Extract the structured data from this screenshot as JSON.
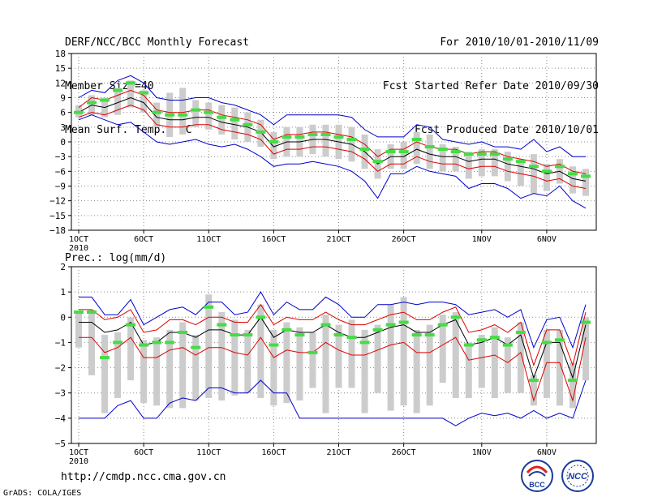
{
  "header": {
    "left": [
      "DERF/NCC/BCC Monthly Forecast",
      "Member Size=40",
      "Mean Surf. Temp.: °C"
    ],
    "right": [
      "For 2010/10/01-2010/11/09",
      "Fcst Started Refer Date 2010/09/30",
      "Fcst Produced Date 2010/10/01"
    ]
  },
  "footer": {
    "url": "http://cmdp.ncc.cma.gov.cn",
    "credit": "GrADS: COLA/IGES"
  },
  "logos": {
    "bcc": "BCC",
    "ncc": "NCC"
  },
  "colors": {
    "envelope": "#0000cc",
    "spread": "#dd0000",
    "mean": "#000000",
    "box": "#cccccc",
    "median": "#44dd44",
    "grid": "#888888"
  },
  "chart_data": [
    {
      "type": "line",
      "title": "Mean Surf. Temp.: °C",
      "x": [
        1,
        2,
        3,
        4,
        5,
        6,
        7,
        8,
        9,
        10,
        11,
        12,
        13,
        14,
        15,
        16,
        17,
        18,
        19,
        20,
        21,
        22,
        23,
        24,
        25,
        26,
        27,
        28,
        29,
        30,
        31,
        32,
        33,
        34,
        35,
        36,
        37,
        38,
        39,
        40
      ],
      "xticks": [
        1,
        6,
        11,
        16,
        21,
        26,
        32,
        37
      ],
      "xtick_labels": [
        "1OCT",
        "6OCT",
        "11OCT",
        "16OCT",
        "21OCT",
        "26OCT",
        "1NOV",
        "6NOV"
      ],
      "year_label": "2010",
      "ylim": [
        -18,
        18
      ],
      "yticks": [
        -18,
        -15,
        -12,
        -9,
        -6,
        -3,
        0,
        3,
        6,
        9,
        12,
        15,
        18
      ],
      "mean": [
        6,
        7.5,
        7,
        8,
        9,
        8,
        5,
        4.5,
        4.5,
        5,
        5,
        4,
        3.5,
        3,
        2,
        -1,
        0,
        0,
        0.5,
        0.5,
        0,
        -0.5,
        -2,
        -4.5,
        -3,
        -3,
        -1.5,
        -2.5,
        -3,
        -3,
        -4,
        -3.5,
        -3.5,
        -4.5,
        -5,
        -5.5,
        -6.5,
        -6,
        -7.5,
        -8
      ],
      "upper_spread": [
        7,
        9,
        8.5,
        9.5,
        10.5,
        9.5,
        6.5,
        6,
        6,
        6.5,
        6.5,
        5.5,
        5,
        4.5,
        3.5,
        0.5,
        1.5,
        1.5,
        2,
        2,
        1.5,
        1,
        -0.5,
        -3,
        -1.5,
        -1.5,
        0,
        -1,
        -1.5,
        -1.5,
        -2.5,
        -2,
        -2,
        -3,
        -3.5,
        -4,
        -5,
        -4.5,
        -6,
        -6.5
      ],
      "lower_spread": [
        5,
        6,
        5.5,
        6.5,
        7.5,
        6.5,
        3.5,
        3,
        3,
        3.5,
        3.5,
        2.5,
        2,
        1.5,
        0.5,
        -2.5,
        -1.5,
        -1.5,
        -1,
        -1,
        -1.5,
        -2,
        -3.5,
        -6,
        -4.5,
        -4.5,
        -3,
        -4,
        -4.5,
        -4.5,
        -5.5,
        -5,
        -5,
        -6,
        -6.5,
        -7,
        -8,
        -7.5,
        -9,
        -9.5
      ],
      "max": [
        9,
        10.5,
        10,
        12.5,
        13.5,
        12,
        9,
        8.5,
        8.5,
        9,
        9,
        8,
        7.5,
        6.5,
        5.5,
        3.5,
        5.5,
        5.5,
        5.5,
        5.5,
        5.5,
        5,
        2.5,
        1,
        1,
        1,
        3.5,
        3,
        0.5,
        0,
        -0.5,
        0,
        -1,
        -1,
        -1.5,
        0.5,
        -2,
        -1,
        -3,
        -3
      ],
      "min": [
        4.5,
        5.5,
        4.5,
        3.5,
        4,
        2,
        0,
        -0.5,
        0,
        0.5,
        -0.5,
        -1,
        -0.5,
        -1.5,
        -3,
        -5,
        -4.5,
        -4.5,
        -4,
        -4.5,
        -5,
        -6,
        -8,
        -11.5,
        -6.5,
        -6.5,
        -5,
        -6,
        -6.5,
        -7,
        -9.5,
        -8.5,
        -8.5,
        -9.5,
        -11.5,
        -10.5,
        -11,
        -9,
        -12,
        -13.5
      ],
      "box_hi": [
        7.5,
        9.5,
        9,
        11,
        12.5,
        10.5,
        8,
        10,
        11,
        8.5,
        8,
        7.5,
        7,
        6,
        4.5,
        2,
        3,
        3,
        3.5,
        3.5,
        3.5,
        3,
        1.5,
        -1.5,
        -0.5,
        0,
        2,
        1.5,
        -0.5,
        -1,
        -2,
        -1.5,
        -1.5,
        -2,
        -3.5,
        -2.5,
        -4.5,
        -3.5,
        -5,
        -5.5
      ],
      "box_lo": [
        5,
        5.5,
        5,
        5.5,
        7,
        6,
        3,
        1,
        1.5,
        3,
        2.5,
        1.5,
        0.5,
        0,
        -1,
        -3.5,
        -3,
        -3,
        -2.5,
        -3,
        -3.5,
        -4,
        -5.5,
        -7.5,
        -5.5,
        -5.5,
        -4.5,
        -5.5,
        -6,
        -6,
        -7.5,
        -7,
        -7,
        -8,
        -9,
        -10.5,
        -10,
        -8.5,
        -10.5,
        -11
      ],
      "median": [
        6,
        8,
        8.5,
        10.5,
        12,
        10,
        6,
        5.5,
        5.5,
        6.5,
        6,
        5,
        4.5,
        3.5,
        2,
        0,
        1,
        1,
        1.5,
        1.5,
        1,
        0.5,
        -1.5,
        -4,
        -2,
        -2,
        0.5,
        -1,
        -1.5,
        -2,
        -2.5,
        -2.5,
        -2.5,
        -3.5,
        -4,
        -5,
        -6,
        -5,
        -6.5,
        -7
      ]
    },
    {
      "type": "line",
      "title": "Prec.: log(mm/d)",
      "x": [
        1,
        2,
        3,
        4,
        5,
        6,
        7,
        8,
        9,
        10,
        11,
        12,
        13,
        14,
        15,
        16,
        17,
        18,
        19,
        20,
        21,
        22,
        23,
        24,
        25,
        26,
        27,
        28,
        29,
        30,
        31,
        32,
        33,
        34,
        35,
        36,
        37,
        38,
        39,
        40
      ],
      "xticks": [
        1,
        6,
        11,
        16,
        21,
        26,
        32,
        37
      ],
      "xtick_labels": [
        "1OCT",
        "6OCT",
        "11OCT",
        "16OCT",
        "21OCT",
        "26OCT",
        "1NOV",
        "6NOV"
      ],
      "year_label": "2010",
      "ylim": [
        -5,
        2
      ],
      "yticks": [
        -5,
        -4,
        -3,
        -2,
        -1,
        0,
        1,
        2
      ],
      "mean": [
        -0.2,
        -0.2,
        -0.6,
        -0.5,
        -0.2,
        -1.1,
        -1,
        -0.6,
        -0.6,
        -0.8,
        -0.5,
        -0.5,
        -0.7,
        -0.7,
        0,
        -0.8,
        -0.5,
        -0.6,
        -0.6,
        -0.3,
        -0.6,
        -0.8,
        -0.8,
        -0.6,
        -0.4,
        -0.3,
        -0.6,
        -0.6,
        -0.3,
        -0.1,
        -1.1,
        -1,
        -0.8,
        -1.1,
        -0.7,
        -2.4,
        -1,
        -1,
        -2.4,
        -0.3
      ],
      "upper_spread": [
        0.3,
        0.3,
        -0.1,
        0,
        0.3,
        -0.6,
        -0.5,
        -0.1,
        -0.1,
        -0.3,
        0,
        0,
        -0.2,
        -0.2,
        0.5,
        -0.3,
        0,
        -0.1,
        -0.1,
        0.2,
        -0.1,
        -0.3,
        -0.3,
        -0.1,
        0.1,
        0.2,
        -0.1,
        -0.1,
        0.2,
        0.4,
        -0.6,
        -0.5,
        -0.3,
        -0.6,
        -0.2,
        -1.9,
        -0.5,
        -0.5,
        -1.9,
        0.2
      ],
      "lower_spread": [
        -0.8,
        -0.8,
        -1.4,
        -1.2,
        -0.8,
        -1.6,
        -1.6,
        -1.3,
        -1.2,
        -1.5,
        -1.2,
        -1.2,
        -1.4,
        -1.5,
        -0.8,
        -1.6,
        -1.3,
        -1.4,
        -1.4,
        -1,
        -1.3,
        -1.5,
        -1.5,
        -1.3,
        -1.1,
        -1,
        -1.4,
        -1.4,
        -1.1,
        -0.8,
        -1.7,
        -1.6,
        -1.5,
        -1.8,
        -1.4,
        -3.3,
        -1.8,
        -1.8,
        -3.3,
        -0.8
      ],
      "max": [
        0.8,
        0.8,
        0.1,
        0.1,
        0.7,
        -0.3,
        0,
        0.3,
        0.4,
        0.1,
        0.6,
        0.6,
        0.1,
        0.2,
        1,
        0.1,
        0.6,
        0.3,
        0.3,
        0.8,
        0.5,
        0,
        0,
        0.5,
        0.5,
        0.6,
        0.5,
        0.6,
        0.6,
        0.5,
        0.1,
        0.2,
        0.3,
        0,
        0.3,
        -1.2,
        -0.1,
        0,
        -1.2,
        0.5
      ],
      "min": [
        -4,
        -4,
        -4,
        -3.5,
        -3.3,
        -4,
        -4,
        -3.4,
        -3.2,
        -3.3,
        -2.8,
        -2.8,
        -3,
        -3,
        -2.5,
        -3,
        -3,
        -4,
        -4,
        -4,
        -4,
        -4,
        -4,
        -4,
        -4,
        -4,
        -4,
        -4,
        -4,
        -4.3,
        -4,
        -3.8,
        -3.9,
        -3.8,
        -4,
        -3.7,
        -4,
        -3.8,
        -4,
        -2.5
      ],
      "box_hi": [
        0.2,
        0.3,
        -0.7,
        -0.6,
        0,
        -0.9,
        -0.8,
        -0.5,
        -0.2,
        -0.7,
        0.9,
        0.2,
        -0.1,
        -0.5,
        0.5,
        -0.5,
        -0.2,
        -0.4,
        -0.6,
        0.1,
        -0.3,
        -0.1,
        -0.5,
        -0.3,
        0.5,
        0.8,
        -0.5,
        -0.3,
        0.1,
        0.2,
        -1,
        -0.7,
        -0.4,
        -0.8,
        -0.2,
        -2.3,
        -0.5,
        -0.5,
        -1.8,
        0
      ],
      "box_lo": [
        -1.2,
        -2.3,
        -3.8,
        -3.2,
        -2.5,
        -3.4,
        -3.5,
        -3.6,
        -3.6,
        -3.3,
        -3.2,
        -3.3,
        -3.1,
        -3,
        -3.2,
        -3.5,
        -3.4,
        -3.3,
        -2.8,
        -3.8,
        -2.8,
        -2.8,
        -3.8,
        -3,
        -3.7,
        -3.5,
        -3.8,
        -3.5,
        -2.6,
        -3.2,
        -3.2,
        -2.8,
        -3.2,
        -3,
        -3,
        -3.5,
        -3.2,
        -3.5,
        -3.6,
        -2.5
      ],
      "median": [
        0.2,
        0.2,
        -1.6,
        -1,
        -0.3,
        -1.1,
        -1,
        -1,
        -0.6,
        -1.2,
        0.4,
        -0.3,
        -0.7,
        -0.7,
        0,
        -1.1,
        -0.5,
        -0.7,
        -1.4,
        -0.3,
        -0.7,
        -0.8,
        -1,
        -0.5,
        -0.3,
        -0.2,
        -0.7,
        -0.7,
        -0.3,
        0,
        -1.1,
        -0.9,
        -0.8,
        -1.1,
        -0.6,
        -2.5,
        -1,
        -0.9,
        -2.5,
        -0.2
      ]
    }
  ]
}
